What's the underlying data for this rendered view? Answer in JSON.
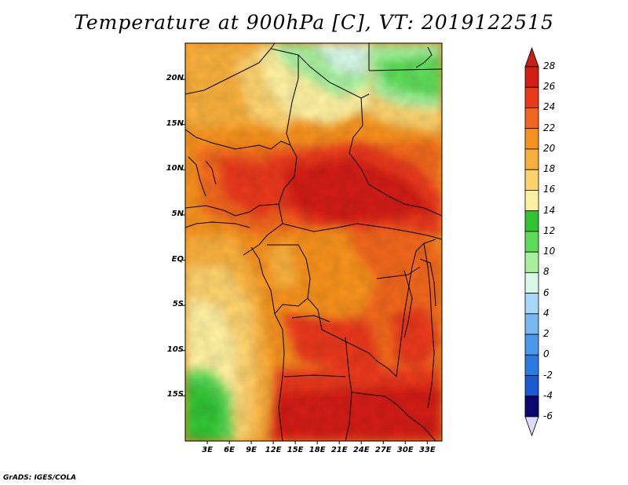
{
  "title": "Temperature at 900hPa [C], VT: 2019122515",
  "credit": "GrADS: IGES/COLA",
  "map": {
    "region": "Central Africa",
    "lon_range": [
      0,
      35
    ],
    "lat_range": [
      -20,
      24
    ],
    "lat_ticks": [
      {
        "value": 20,
        "label": "20N"
      },
      {
        "value": 15,
        "label": "15N"
      },
      {
        "value": 10,
        "label": "10N"
      },
      {
        "value": 5,
        "label": "5N"
      },
      {
        "value": 0,
        "label": "EQ"
      },
      {
        "value": -5,
        "label": "5S"
      },
      {
        "value": -10,
        "label": "10S"
      },
      {
        "value": -15,
        "label": "15S"
      }
    ],
    "lon_ticks": [
      {
        "value": 3,
        "label": "3E"
      },
      {
        "value": 6,
        "label": "6E"
      },
      {
        "value": 9,
        "label": "9E"
      },
      {
        "value": 12,
        "label": "12E"
      },
      {
        "value": 15,
        "label": "15E"
      },
      {
        "value": 18,
        "label": "18E"
      },
      {
        "value": 21,
        "label": "21E"
      },
      {
        "value": 24,
        "label": "24E"
      },
      {
        "value": 27,
        "label": "27E"
      },
      {
        "value": 30,
        "label": "30E"
      },
      {
        "value": 33,
        "label": "33E"
      }
    ]
  },
  "colorbar": {
    "levels": [
      {
        "label": "28",
        "color": "#d21e14"
      },
      {
        "label": "26",
        "color": "#e8391a"
      },
      {
        "label": "24",
        "color": "#f0661e"
      },
      {
        "label": "22",
        "color": "#f5911e"
      },
      {
        "label": "20",
        "color": "#f8b03c"
      },
      {
        "label": "18",
        "color": "#fbd26e"
      },
      {
        "label": "16",
        "color": "#fdf0a0"
      },
      {
        "label": "14",
        "color": "#33c234"
      },
      {
        "label": "12",
        "color": "#5fdb5a"
      },
      {
        "label": "10",
        "color": "#a8ef9e"
      },
      {
        "label": "8",
        "color": "#d8f8e8"
      },
      {
        "label": "6",
        "color": "#a8d8f8"
      },
      {
        "label": "4",
        "color": "#78b8f0"
      },
      {
        "label": "2",
        "color": "#4c98ea"
      },
      {
        "label": "0",
        "color": "#2c7ae0"
      },
      {
        "label": "-2",
        "color": "#1c5ad2"
      },
      {
        "label": "-4",
        "color": "#123cb4"
      },
      {
        "label": "-6",
        "color": "#0c1a8c"
      }
    ],
    "top_color": "#c81e14",
    "bottom_color": "#dcdcf8",
    "bottom_segment_color": "#0a0a6e"
  }
}
